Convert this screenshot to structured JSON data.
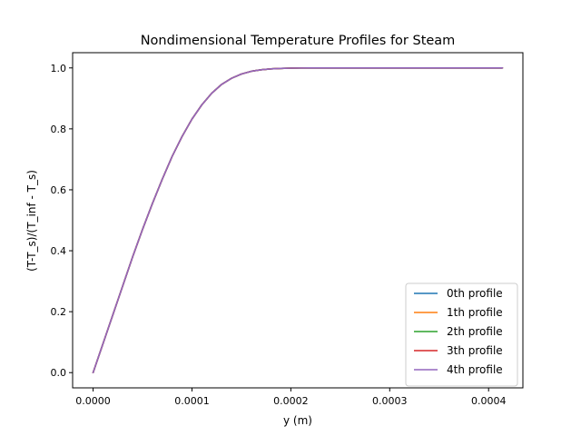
{
  "chart_data": {
    "type": "line",
    "title": "Nondimensional Temperature Profiles for Steam",
    "xlabel": "y (m)",
    "ylabel": "(T-T_s)/(T_inf - T_s)",
    "xlim": [
      -2.07e-05,
      0.0004347
    ],
    "ylim": [
      -0.05,
      1.05
    ],
    "xticks": [
      0.0,
      0.0001,
      0.0002,
      0.0003,
      0.0004
    ],
    "xtick_labels": [
      "0.0000",
      "0.0001",
      "0.0002",
      "0.0003",
      "0.0004"
    ],
    "yticks": [
      0.0,
      0.2,
      0.4,
      0.6,
      0.8,
      1.0
    ],
    "ytick_labels": [
      "0.0",
      "0.2",
      "0.4",
      "0.6",
      "0.8",
      "1.0"
    ],
    "grid": false,
    "legend_position": "lower-right",
    "x": [
      0.0,
      1e-05,
      2e-05,
      3e-05,
      4e-05,
      5e-05,
      6e-05,
      7e-05,
      8e-05,
      9e-05,
      0.0001,
      0.00011,
      0.00012,
      0.00013,
      0.00014,
      0.00015,
      0.00016,
      0.00017,
      0.00018,
      0.00019,
      0.0002,
      0.00021,
      0.00022,
      0.00024,
      0.00026,
      0.00028,
      0.0003,
      0.00033,
      0.00036,
      0.00039,
      0.000414
    ],
    "series": [
      {
        "name": "0th profile",
        "color": "#1f77b4",
        "values": [
          0.0,
          0.095,
          0.19,
          0.285,
          0.38,
          0.47,
          0.555,
          0.635,
          0.71,
          0.775,
          0.832,
          0.879,
          0.917,
          0.946,
          0.966,
          0.98,
          0.989,
          0.994,
          0.997,
          0.9985,
          0.9993,
          0.9997,
          0.9999,
          1.0,
          1.0,
          1.0,
          1.0,
          1.0,
          1.0,
          1.0,
          1.0
        ]
      },
      {
        "name": "1th profile",
        "color": "#ff7f0e",
        "values": [
          0.0,
          0.095,
          0.19,
          0.285,
          0.38,
          0.47,
          0.555,
          0.635,
          0.71,
          0.775,
          0.832,
          0.879,
          0.917,
          0.946,
          0.966,
          0.98,
          0.989,
          0.994,
          0.997,
          0.9985,
          0.9993,
          0.9997,
          0.9999,
          1.0,
          1.0,
          1.0,
          1.0,
          1.0,
          1.0,
          1.0,
          1.0
        ]
      },
      {
        "name": "2th profile",
        "color": "#2ca02c",
        "values": [
          0.0,
          0.095,
          0.19,
          0.285,
          0.38,
          0.47,
          0.555,
          0.635,
          0.71,
          0.775,
          0.832,
          0.879,
          0.917,
          0.946,
          0.966,
          0.98,
          0.989,
          0.994,
          0.997,
          0.9985,
          0.9993,
          0.9997,
          0.9999,
          1.0,
          1.0,
          1.0,
          1.0,
          1.0,
          1.0,
          1.0,
          1.0
        ]
      },
      {
        "name": "3th profile",
        "color": "#d62728",
        "values": [
          0.0,
          0.095,
          0.19,
          0.285,
          0.38,
          0.47,
          0.555,
          0.635,
          0.71,
          0.775,
          0.832,
          0.879,
          0.917,
          0.946,
          0.966,
          0.98,
          0.989,
          0.994,
          0.997,
          0.9985,
          0.9993,
          0.9997,
          0.9999,
          1.0,
          1.0,
          1.0,
          1.0,
          1.0,
          1.0,
          1.0,
          1.0
        ]
      },
      {
        "name": "4th profile",
        "color": "#9467bd",
        "values": [
          0.0,
          0.095,
          0.19,
          0.285,
          0.38,
          0.47,
          0.555,
          0.635,
          0.71,
          0.775,
          0.832,
          0.879,
          0.917,
          0.946,
          0.966,
          0.98,
          0.989,
          0.994,
          0.997,
          0.9985,
          0.9993,
          0.9997,
          0.9999,
          1.0,
          1.0,
          1.0,
          1.0,
          1.0,
          1.0,
          1.0,
          1.0
        ]
      }
    ]
  }
}
